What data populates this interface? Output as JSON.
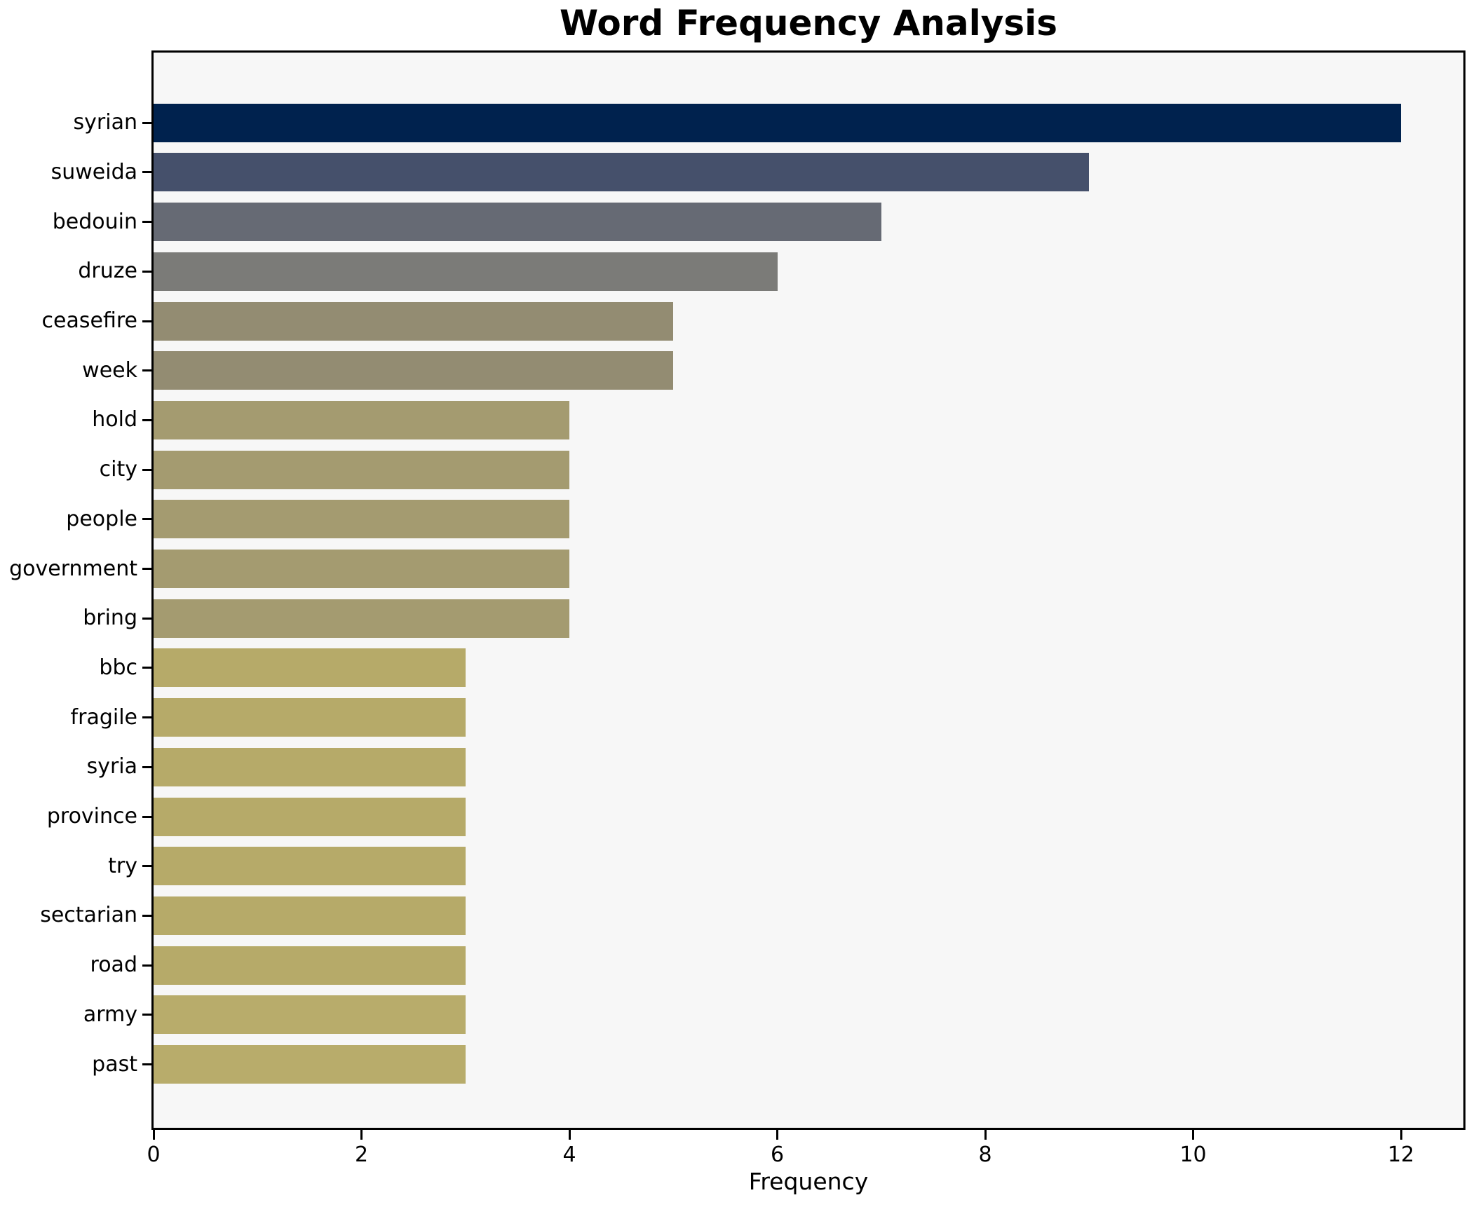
{
  "chart_data": {
    "type": "bar",
    "orientation": "horizontal",
    "title": "Word Frequency Analysis",
    "xlabel": "Frequency",
    "ylabel": "",
    "categories": [
      "syrian",
      "suweida",
      "bedouin",
      "druze",
      "ceasefire",
      "week",
      "hold",
      "city",
      "people",
      "government",
      "bring",
      "bbc",
      "fragile",
      "syria",
      "province",
      "try",
      "sectarian",
      "road",
      "army",
      "past"
    ],
    "values": [
      12,
      9,
      7,
      6,
      5,
      5,
      4,
      4,
      4,
      4,
      4,
      3,
      3,
      3,
      3,
      3,
      3,
      3,
      3,
      3
    ],
    "bar_colors": [
      "#00224e",
      "#45506b",
      "#666a74",
      "#7b7b78",
      "#938c72",
      "#938c72",
      "#a49b70",
      "#a49b70",
      "#a49b70",
      "#a49b70",
      "#a49b70",
      "#b6aa69",
      "#b6aa69",
      "#b6aa69",
      "#b6aa69",
      "#b6aa69",
      "#b6aa69",
      "#b6aa69",
      "#b8ac6b",
      "#b8ac6b"
    ],
    "x_ticks": [
      0,
      2,
      4,
      6,
      8,
      10,
      12
    ],
    "xlim": [
      0,
      12.6
    ],
    "grid": false,
    "legend": null,
    "plot_background": "#f7f7f7",
    "axis_color": "#000000"
  }
}
